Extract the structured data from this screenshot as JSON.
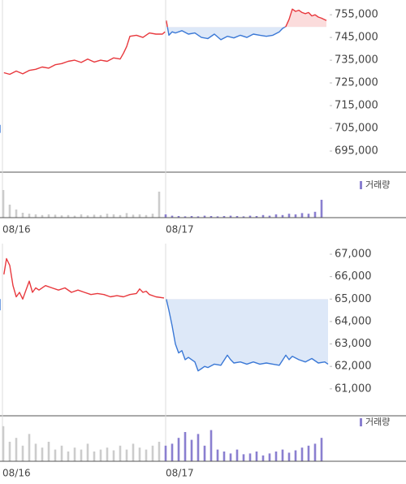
{
  "chart_data": [
    {
      "type": "line",
      "xlim": [
        0,
        101.25
      ],
      "ylim": [
        685700,
        761500
      ],
      "yticks": [
        {
          "value": 695000,
          "label": "695,000"
        },
        {
          "value": 705000,
          "label": "705,000"
        },
        {
          "value": 715000,
          "label": "715,000"
        },
        {
          "value": 725000,
          "label": "725,000"
        },
        {
          "value": 735000,
          "label": "735,000"
        },
        {
          "value": 745000,
          "label": "745,000"
        },
        {
          "value": 755000,
          "label": "755,000"
        }
      ],
      "series": [
        {
          "color": "#3a78d6",
          "x": [
            0,
            0
          ],
          "values": [
            706500,
            703000
          ]
        },
        {
          "color": "#e8383d",
          "x": [
            1.2,
            3,
            5,
            7,
            9,
            11,
            13,
            15,
            17,
            19,
            21,
            23,
            25,
            27,
            29,
            31,
            33,
            35,
            37,
            38,
            39,
            40,
            42,
            44,
            46,
            48,
            50,
            50.8
          ],
          "values": [
            729500,
            728800,
            730200,
            729000,
            730500,
            731000,
            732000,
            731500,
            733000,
            733500,
            734500,
            735000,
            734000,
            735500,
            734200,
            735000,
            734500,
            736000,
            735500,
            738000,
            741000,
            745500,
            746000,
            745000,
            747000,
            746500,
            746500,
            747500
          ]
        },
        {
          "color_up": "#e8383d",
          "color_down": "#3a78d6",
          "fill_up": "#fbdcdc",
          "fill_down": "#dde8f8",
          "baseline": 749600,
          "x": [
            51.2,
            52,
            53,
            54,
            56,
            58,
            60,
            62,
            64,
            66,
            68,
            70,
            72,
            74,
            76,
            78,
            80,
            82,
            84,
            86,
            87,
            88,
            89,
            90,
            91,
            92,
            93,
            94,
            95,
            96,
            97,
            98,
            99,
            100.5
          ],
          "values": [
            752500,
            746000,
            747500,
            747000,
            748000,
            746500,
            747000,
            745000,
            744500,
            746500,
            744000,
            745500,
            744800,
            746000,
            745000,
            746500,
            746000,
            745500,
            746000,
            747500,
            749000,
            749800,
            753000,
            757500,
            756500,
            757000,
            756000,
            755500,
            756000,
            754500,
            755000,
            754000,
            753500,
            752500
          ]
        }
      ]
    },
    {
      "type": "bar",
      "xlim": [
        0,
        101.25
      ],
      "ylim": [
        0,
        100
      ],
      "xticks": [
        {
          "value": 0.75,
          "label": "08/16"
        },
        {
          "value": 51,
          "label": "08/17"
        }
      ],
      "x": [
        1,
        3,
        5,
        7,
        9,
        11,
        13,
        15,
        17,
        19,
        21,
        23,
        25,
        27,
        29,
        31,
        33,
        35,
        37,
        39,
        41,
        43,
        45,
        47,
        49,
        51,
        53,
        55,
        57,
        59,
        61,
        63,
        65,
        67,
        69,
        71,
        73,
        75,
        77,
        79,
        81,
        83,
        85,
        87,
        89,
        91,
        93,
        95,
        97,
        99
      ],
      "series": [
        {
          "name": "거래량",
          "color": "#8a7fd0",
          "values": [
            null,
            null,
            null,
            null,
            null,
            null,
            null,
            null,
            null,
            null,
            null,
            null,
            null,
            null,
            null,
            null,
            null,
            null,
            null,
            null,
            null,
            null,
            null,
            null,
            null,
            10,
            6,
            5,
            4,
            5,
            4,
            6,
            5,
            4,
            5,
            6,
            5,
            4,
            6,
            5,
            8,
            6,
            10,
            8,
            12,
            10,
            14,
            12,
            18,
            55
          ]
        },
        {
          "color": "#cccccc",
          "values": [
            85,
            40,
            25,
            15,
            12,
            10,
            8,
            10,
            9,
            7,
            8,
            6,
            10,
            7,
            9,
            8,
            12,
            10,
            8,
            14,
            9,
            10,
            8,
            12,
            80,
            null,
            null,
            null,
            null,
            null,
            null,
            null,
            null,
            null,
            null,
            null,
            null,
            null,
            null,
            null,
            null,
            null,
            null,
            null,
            null,
            null,
            null,
            null,
            null,
            null
          ]
        }
      ]
    },
    {
      "type": "line",
      "xlim": [
        0,
        101.25
      ],
      "ylim": [
        59800,
        67470
      ],
      "yticks": [
        {
          "value": 61000,
          "label": "61,000"
        },
        {
          "value": 62000,
          "label": "62,000"
        },
        {
          "value": 63000,
          "label": "63,000"
        },
        {
          "value": 64000,
          "label": "64,000"
        },
        {
          "value": 65000,
          "label": "65,000"
        },
        {
          "value": 66000,
          "label": "66,000"
        },
        {
          "value": 67000,
          "label": "67,000"
        }
      ],
      "series": [
        {
          "color": "#3a78d6",
          "x": [
            0,
            0
          ],
          "values": [
            65000,
            64500
          ]
        },
        {
          "color": "#e8383d",
          "x": [
            1.2,
            2,
            3,
            4,
            5,
            6,
            7,
            8,
            9,
            10,
            11,
            12,
            14,
            16,
            18,
            20,
            22,
            24,
            26,
            28,
            30,
            32,
            34,
            36,
            38,
            40,
            42,
            43,
            44,
            45,
            46,
            48,
            50.5
          ],
          "values": [
            66100,
            66800,
            66500,
            65600,
            65100,
            65300,
            65000,
            65400,
            65800,
            65300,
            65500,
            65400,
            65600,
            65500,
            65400,
            65500,
            65300,
            65400,
            65300,
            65200,
            65250,
            65200,
            65100,
            65150,
            65100,
            65200,
            65250,
            65450,
            65300,
            65350,
            65200,
            65100,
            65050
          ]
        },
        {
          "color_up": "#e8383d",
          "color_down": "#3a78d6",
          "fill_up": "#fbdcdc",
          "fill_down": "#dde8f8",
          "baseline": 65000,
          "x": [
            51.2,
            52,
            53,
            54,
            55,
            56,
            57,
            58,
            60,
            61,
            62,
            63,
            64,
            66,
            68,
            70,
            71,
            72,
            74,
            76,
            78,
            80,
            82,
            84,
            86,
            88,
            89,
            90,
            92,
            94,
            96,
            98,
            100,
            101
          ],
          "values": [
            65000,
            64500,
            63800,
            63000,
            62600,
            62700,
            62300,
            62400,
            62200,
            61800,
            61900,
            62000,
            61950,
            62100,
            62050,
            62500,
            62300,
            62150,
            62200,
            62100,
            62200,
            62100,
            62150,
            62100,
            62050,
            62500,
            62300,
            62450,
            62300,
            62200,
            62350,
            62150,
            62200,
            62100
          ]
        }
      ]
    },
    {
      "type": "bar",
      "xlim": [
        0,
        101.25
      ],
      "ylim": [
        0,
        100
      ],
      "xticks": [
        {
          "value": 0.75,
          "label": "08/16"
        },
        {
          "value": 51,
          "label": "08/17"
        }
      ],
      "x": [
        1,
        3,
        5,
        7,
        9,
        11,
        13,
        15,
        17,
        19,
        21,
        23,
        25,
        27,
        29,
        31,
        33,
        35,
        37,
        39,
        41,
        43,
        45,
        47,
        49,
        51,
        53,
        55,
        57,
        59,
        61,
        63,
        65,
        67,
        69,
        71,
        73,
        75,
        77,
        79,
        81,
        83,
        85,
        87,
        89,
        91,
        93,
        95,
        97,
        99
      ],
      "series": [
        {
          "name": "거래량",
          "color": "#8a7fd0",
          "values": [
            null,
            null,
            null,
            null,
            null,
            null,
            null,
            null,
            null,
            null,
            null,
            null,
            null,
            null,
            null,
            null,
            null,
            null,
            null,
            null,
            null,
            null,
            null,
            null,
            null,
            40,
            45,
            60,
            75,
            55,
            70,
            40,
            80,
            30,
            25,
            20,
            30,
            18,
            20,
            25,
            15,
            20,
            25,
            30,
            22,
            28,
            35,
            40,
            45,
            60
          ]
        },
        {
          "color": "#cccccc",
          "values": [
            90,
            50,
            60,
            40,
            70,
            45,
            35,
            50,
            30,
            40,
            25,
            35,
            30,
            45,
            25,
            30,
            35,
            28,
            40,
            30,
            45,
            35,
            30,
            40,
            50,
            null,
            null,
            null,
            null,
            null,
            null,
            null,
            null,
            null,
            null,
            null,
            null,
            null,
            null,
            null,
            null,
            null,
            null,
            null,
            null,
            null,
            null,
            null,
            null,
            null
          ]
        }
      ]
    }
  ]
}
